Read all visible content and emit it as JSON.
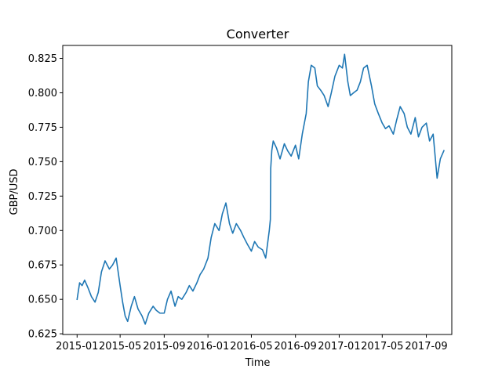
{
  "chart_data": {
    "type": "line",
    "title": "Converter",
    "xlabel": "Time",
    "ylabel": "GBP/USD",
    "xlim": [
      "2014-11-22",
      "2017-11-11"
    ],
    "ylim": [
      0.6245,
      0.8344
    ],
    "x_ticks": [
      "2015-01",
      "2015-05",
      "2015-09",
      "2016-01",
      "2016-05",
      "2016-09",
      "2017-01",
      "2017-05",
      "2017-09"
    ],
    "y_ticks": [
      "0.625",
      "0.650",
      "0.675",
      "0.700",
      "0.725",
      "0.750",
      "0.775",
      "0.800",
      "0.825"
    ],
    "grid": false,
    "legend": "none",
    "line_color": "#1f77b4",
    "series": [
      {
        "x": [
          "2015-01-01",
          "2015-01-08",
          "2015-01-15",
          "2015-01-22",
          "2015-02-01",
          "2015-02-10",
          "2015-02-20",
          "2015-03-01",
          "2015-03-10",
          "2015-03-20",
          "2015-04-01",
          "2015-04-10",
          "2015-04-20",
          "2015-05-01",
          "2015-05-08",
          "2015-05-15",
          "2015-05-22",
          "2015-06-01",
          "2015-06-10",
          "2015-06-20",
          "2015-07-01",
          "2015-07-10",
          "2015-07-20",
          "2015-08-01",
          "2015-08-10",
          "2015-08-20",
          "2015-09-01",
          "2015-09-10",
          "2015-09-20",
          "2015-10-01",
          "2015-10-10",
          "2015-10-20",
          "2015-11-01",
          "2015-11-10",
          "2015-11-20",
          "2015-12-01",
          "2015-12-10",
          "2015-12-20",
          "2016-01-01",
          "2016-01-10",
          "2016-01-20",
          "2016-02-01",
          "2016-02-10",
          "2016-02-20",
          "2016-03-01",
          "2016-03-10",
          "2016-03-20",
          "2016-04-01",
          "2016-04-10",
          "2016-04-20",
          "2016-05-01",
          "2016-05-10",
          "2016-05-20",
          "2016-06-01",
          "2016-06-10",
          "2016-06-20",
          "2016-06-23",
          "2016-06-24",
          "2016-06-27",
          "2016-07-01",
          "2016-07-10",
          "2016-07-20",
          "2016-08-01",
          "2016-08-10",
          "2016-08-20",
          "2016-09-01",
          "2016-09-10",
          "2016-09-20",
          "2016-10-01",
          "2016-10-07",
          "2016-10-15",
          "2016-10-25",
          "2016-11-01",
          "2016-11-10",
          "2016-11-20",
          "2016-12-01",
          "2016-12-10",
          "2016-12-20",
          "2017-01-01",
          "2017-01-10",
          "2017-01-16",
          "2017-01-25",
          "2017-02-01",
          "2017-02-10",
          "2017-02-20",
          "2017-03-01",
          "2017-03-10",
          "2017-03-20",
          "2017-04-01",
          "2017-04-10",
          "2017-04-20",
          "2017-05-01",
          "2017-05-10",
          "2017-05-20",
          "2017-06-01",
          "2017-06-10",
          "2017-06-20",
          "2017-07-01",
          "2017-07-10",
          "2017-07-20",
          "2017-08-01",
          "2017-08-10",
          "2017-08-20",
          "2017-09-01",
          "2017-09-10",
          "2017-09-20",
          "2017-10-01",
          "2017-10-10",
          "2017-10-20"
        ],
        "values": [
          0.65,
          0.662,
          0.66,
          0.664,
          0.658,
          0.652,
          0.648,
          0.655,
          0.67,
          0.678,
          0.672,
          0.675,
          0.68,
          0.66,
          0.648,
          0.638,
          0.634,
          0.645,
          0.652,
          0.643,
          0.638,
          0.632,
          0.64,
          0.645,
          0.642,
          0.64,
          0.64,
          0.65,
          0.656,
          0.645,
          0.652,
          0.65,
          0.655,
          0.66,
          0.656,
          0.662,
          0.668,
          0.672,
          0.68,
          0.695,
          0.705,
          0.7,
          0.712,
          0.72,
          0.705,
          0.698,
          0.705,
          0.7,
          0.695,
          0.69,
          0.685,
          0.692,
          0.688,
          0.686,
          0.68,
          0.7,
          0.708,
          0.745,
          0.758,
          0.765,
          0.76,
          0.752,
          0.763,
          0.758,
          0.754,
          0.762,
          0.752,
          0.77,
          0.785,
          0.808,
          0.82,
          0.818,
          0.805,
          0.802,
          0.798,
          0.79,
          0.8,
          0.812,
          0.82,
          0.818,
          0.828,
          0.808,
          0.798,
          0.8,
          0.802,
          0.808,
          0.818,
          0.82,
          0.805,
          0.792,
          0.785,
          0.778,
          0.774,
          0.776,
          0.77,
          0.78,
          0.79,
          0.785,
          0.775,
          0.77,
          0.782,
          0.768,
          0.775,
          0.778,
          0.765,
          0.77,
          0.738,
          0.752,
          0.758
        ]
      }
    ]
  }
}
